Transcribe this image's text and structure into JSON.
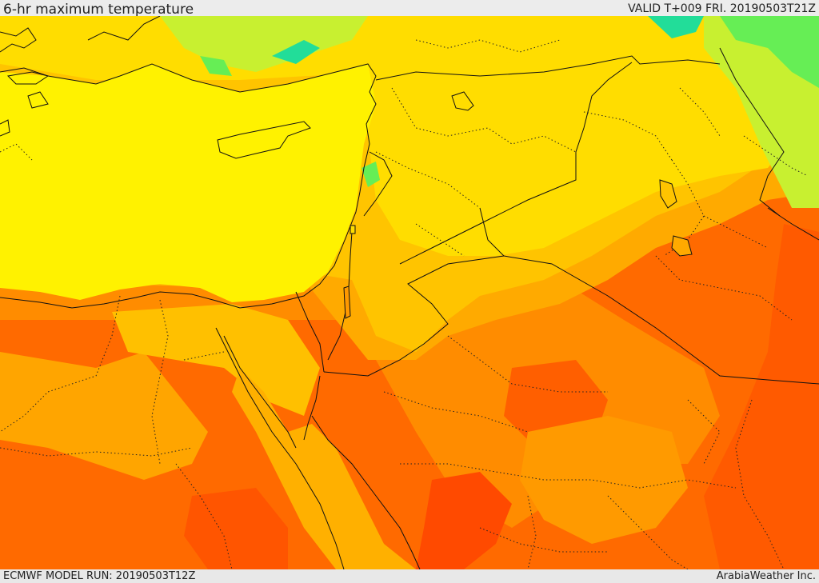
{
  "header": {
    "title": "6-hr maximum temperature",
    "valid": "VALID T+009 FRI. 20190503T21Z"
  },
  "footer": {
    "model_run": "ECMWF MODEL RUN: 20190503T12Z",
    "credit": "ArabiaWeather Inc."
  },
  "colors": {
    "sea_yellow": "#fff200",
    "light_gold": "#ffdd00",
    "gold": "#ffc400",
    "light_orange": "#ffaa00",
    "orange": "#ff8c00",
    "deep_orange": "#ff6400",
    "red_orange": "#ff4a00",
    "light_green": "#c8f030",
    "green": "#66ee55",
    "cyan": "#22dd99",
    "boundary": "#111111"
  }
}
